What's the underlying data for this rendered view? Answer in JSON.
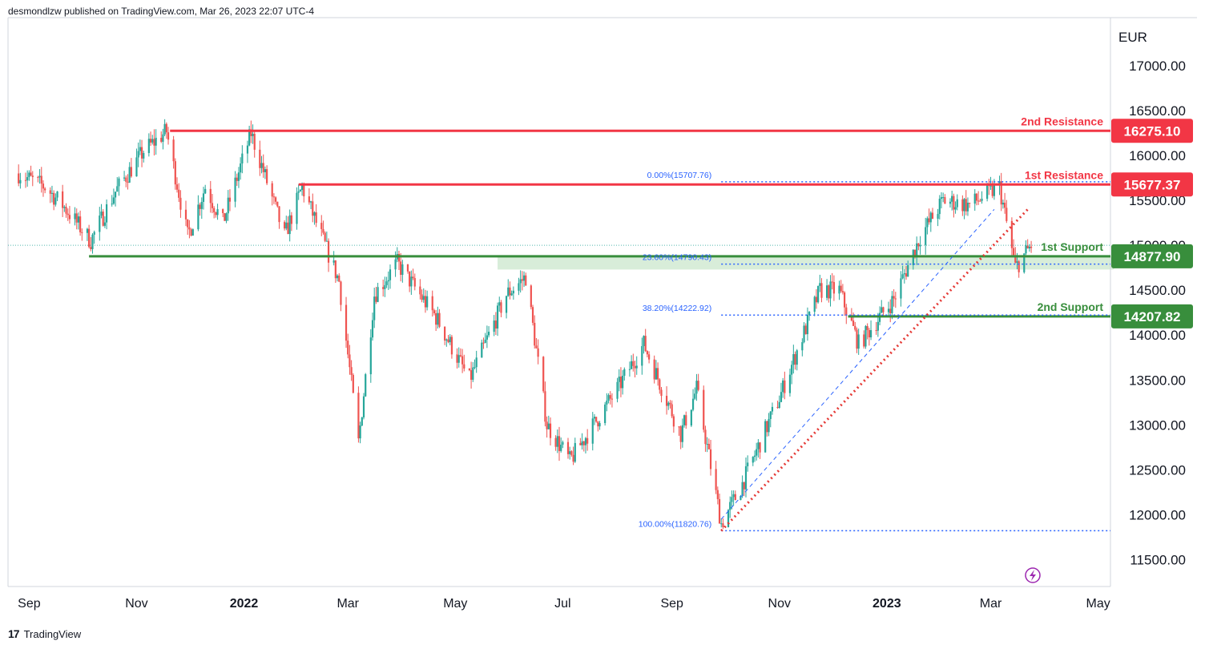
{
  "header": {
    "text": "desmondlzw published on TradingView.com, Mar 26, 2023 22:07 UTC-4"
  },
  "footer": {
    "brand": "TradingView",
    "logo_glyph": "17"
  },
  "colors": {
    "up": "#26a69a",
    "down": "#ef5350",
    "resistance": "#f23645",
    "support": "#388e3c",
    "fib": "#2962ff",
    "fib_text": "#2962ff",
    "trend": "#e53935",
    "zone": "#c8e6c9"
  },
  "chart_data": {
    "type": "candlestick",
    "currency": "EUR",
    "ylim": [
      11200,
      17500
    ],
    "yticks": [
      "17000.00",
      "16500.00",
      "16000.00",
      "15500.00",
      "15000.00",
      "14500.00",
      "14000.00",
      "13500.00",
      "13000.00",
      "12500.00",
      "12000.00",
      "11500.00"
    ],
    "ytick_values": [
      17000,
      16500,
      16000,
      15500,
      15000,
      14500,
      14000,
      13500,
      13000,
      12500,
      12000,
      11500
    ],
    "xticks": [
      {
        "label": "Sep",
        "date": "2021-09-01",
        "bold": false
      },
      {
        "label": "Nov",
        "date": "2021-11-01",
        "bold": false
      },
      {
        "label": "2022",
        "date": "2022-01-01",
        "bold": true
      },
      {
        "label": "Mar",
        "date": "2022-03-01",
        "bold": false
      },
      {
        "label": "May",
        "date": "2022-05-01",
        "bold": false
      },
      {
        "label": "Jul",
        "date": "2022-07-01",
        "bold": false
      },
      {
        "label": "Sep",
        "date": "2022-09-01",
        "bold": false
      },
      {
        "label": "Nov",
        "date": "2022-11-01",
        "bold": false
      },
      {
        "label": "2023",
        "date": "2023-01-01",
        "bold": true
      },
      {
        "label": "Mar",
        "date": "2023-03-01",
        "bold": false
      },
      {
        "label": "May",
        "date": "2023-05-01",
        "bold": false
      }
    ],
    "levels": [
      {
        "name": "2nd Resistance",
        "value": 16275.1,
        "price_label": "16275.10",
        "kind": "resistance",
        "from": "2021-11-20"
      },
      {
        "name": "1st Resistance",
        "value": 15677.37,
        "price_label": "15677.37",
        "kind": "resistance",
        "from": "2022-02-01"
      },
      {
        "name": "1st Support",
        "value": 14877.9,
        "price_label": "14877.90",
        "kind": "support",
        "from": "2021-10-05"
      },
      {
        "name": "2nd Support",
        "value": 14207.82,
        "price_label": "14207.82",
        "kind": "support",
        "from": "2022-12-10"
      }
    ],
    "fib": [
      {
        "label": "0.00%(15707.76)",
        "value": 15707.76
      },
      {
        "label": "23.60%(14790.43)",
        "value": 14790.43
      },
      {
        "label": "38.20%(14222.92)",
        "value": 14222.92
      },
      {
        "label": "100.00%(11820.76)",
        "value": 11820.76
      }
    ],
    "fib_from": "2022-09-29",
    "support_zone": {
      "from": "2022-05-25",
      "to": "2023-05-10",
      "low": 14730,
      "high": 14880
    },
    "trendlines": [
      {
        "style": "dotted",
        "from": {
          "date": "2022-09-29",
          "value": 11820
        },
        "to": {
          "date": "2023-03-22",
          "value": 15400
        }
      },
      {
        "style": "dashed",
        "from": {
          "date": "2022-09-29",
          "value": 11950
        },
        "to": {
          "date": "2023-03-03",
          "value": 15400
        }
      }
    ],
    "anchors": [
      {
        "date": "2021-08-26",
        "close": 15800
      },
      {
        "date": "2021-09-10",
        "close": 15650
      },
      {
        "date": "2021-09-20",
        "close": 15450
      },
      {
        "date": "2021-10-06",
        "close": 15050
      },
      {
        "date": "2021-10-20",
        "close": 15600
      },
      {
        "date": "2021-11-05",
        "close": 16050
      },
      {
        "date": "2021-11-18",
        "close": 16270
      },
      {
        "date": "2021-11-30",
        "close": 15100
      },
      {
        "date": "2021-12-10",
        "close": 15650
      },
      {
        "date": "2021-12-20",
        "close": 15250
      },
      {
        "date": "2022-01-05",
        "close": 16250
      },
      {
        "date": "2022-01-24",
        "close": 15100
      },
      {
        "date": "2022-02-03",
        "close": 15650
      },
      {
        "date": "2022-02-24",
        "close": 14600
      },
      {
        "date": "2022-03-07",
        "close": 12800
      },
      {
        "date": "2022-03-16",
        "close": 14450
      },
      {
        "date": "2022-03-29",
        "close": 14800
      },
      {
        "date": "2022-04-20",
        "close": 14200
      },
      {
        "date": "2022-05-09",
        "close": 13500
      },
      {
        "date": "2022-05-30",
        "close": 14450
      },
      {
        "date": "2022-06-10",
        "close": 14650
      },
      {
        "date": "2022-06-22",
        "close": 13000
      },
      {
        "date": "2022-07-05",
        "close": 12600
      },
      {
        "date": "2022-08-01",
        "close": 13400
      },
      {
        "date": "2022-08-16",
        "close": 13900
      },
      {
        "date": "2022-09-06",
        "close": 12900
      },
      {
        "date": "2022-09-15",
        "close": 13400
      },
      {
        "date": "2022-09-29",
        "close": 11900
      },
      {
        "date": "2022-10-10",
        "close": 12300
      },
      {
        "date": "2022-11-01",
        "close": 13300
      },
      {
        "date": "2022-11-24",
        "close": 14500
      },
      {
        "date": "2022-12-05",
        "close": 14500
      },
      {
        "date": "2022-12-16",
        "close": 13900
      },
      {
        "date": "2023-01-05",
        "close": 14400
      },
      {
        "date": "2023-01-20",
        "close": 15100
      },
      {
        "date": "2023-02-02",
        "close": 15500
      },
      {
        "date": "2023-02-17",
        "close": 15450
      },
      {
        "date": "2023-03-06",
        "close": 15650
      },
      {
        "date": "2023-03-15",
        "close": 14750
      },
      {
        "date": "2023-03-24",
        "close": 15000
      }
    ],
    "watermark_icon": "lightning-icon"
  }
}
